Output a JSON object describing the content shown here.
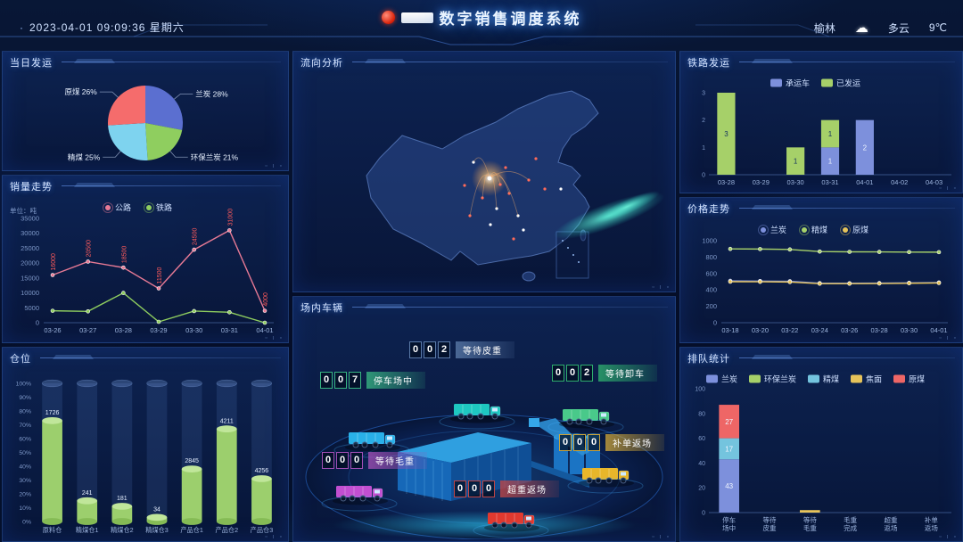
{
  "header": {
    "datetime": "2023-04-01  09:09:36  星期六",
    "title": "数字销售调度系统",
    "logo_icon": "emblem-icon",
    "weather": {
      "city": "榆林",
      "icon": "cloud-icon",
      "condition": "多云",
      "temperature": "9℃"
    }
  },
  "panels": {
    "daily_shipment": "当日发运",
    "sales_trend": "销量走势",
    "warehouse": "仓位",
    "flow_analysis": "流向分析",
    "yard_vehicles": "场内车辆",
    "rail_shipment": "铁路发运",
    "price_trend": "价格走势",
    "queue_stats": "排队统计"
  },
  "chart_data": {
    "daily_shipment": {
      "type": "pie",
      "title": "当日发运",
      "slices": [
        {
          "name": "兰炭",
          "value": 28,
          "color": "#5b6fd0"
        },
        {
          "name": "环保兰炭",
          "value": 21,
          "color": "#8fce5f"
        },
        {
          "name": "精煤",
          "value": 25,
          "color": "#7ed3ef"
        },
        {
          "name": "原煤",
          "value": 26,
          "color": "#f56c6c"
        }
      ]
    },
    "sales_trend": {
      "type": "line",
      "title": "销量走势",
      "y_unit": "单位：吨",
      "x": [
        "03-26",
        "03-27",
        "03-28",
        "03-29",
        "03-30",
        "03-31",
        "04-01"
      ],
      "ylim": [
        0,
        35000
      ],
      "yticks": [
        0,
        5000,
        10000,
        15000,
        20000,
        25000,
        30000,
        35000
      ],
      "series": [
        {
          "name": "公路",
          "color": "#e87a95",
          "label_color": "#ff5b5b",
          "show_labels": true,
          "values": [
            16000,
            20500,
            18500,
            11500,
            24500,
            31000,
            4000
          ]
        },
        {
          "name": "铁路",
          "color": "#8fce5f",
          "show_labels": false,
          "values": [
            4000,
            3800,
            10000,
            300,
            3900,
            3500,
            0
          ]
        }
      ]
    },
    "warehouse": {
      "type": "bar",
      "title": "仓位",
      "categories": [
        "原料仓",
        "精煤仓1",
        "精煤仓2",
        "精煤仓3",
        "产品仓1",
        "产品仓2",
        "产品仓3"
      ],
      "percent": [
        73,
        15,
        11,
        3,
        38,
        67,
        31
      ],
      "labels": [
        "1726",
        "241",
        "181",
        "34",
        "2845",
        "4211",
        "4256"
      ],
      "ylim": [
        0,
        100
      ],
      "bar_color": "#9ccf6d"
    },
    "rail_shipment": {
      "type": "bar-stacked",
      "title": "铁路发运",
      "categories": [
        "03-28",
        "03-29",
        "03-30",
        "03-31",
        "04-01",
        "04-02",
        "04-03"
      ],
      "ylim": [
        0,
        3
      ],
      "yticks": [
        0,
        1,
        2,
        3
      ],
      "series": [
        {
          "name": "承运车",
          "color": "#7d90dc",
          "dark_label": false,
          "values": [
            0,
            0,
            0,
            1,
            2,
            0,
            0
          ]
        },
        {
          "name": "已发运",
          "color": "#a6d069",
          "dark_label": true,
          "values": [
            3,
            0,
            1,
            1,
            0,
            0,
            0
          ]
        }
      ]
    },
    "price_trend": {
      "type": "line",
      "title": "价格走势",
      "x": [
        "03-18",
        "03-20",
        "03-22",
        "03-24",
        "03-26",
        "03-28",
        "03-30",
        "04-01"
      ],
      "ylim": [
        0,
        1000
      ],
      "yticks": [
        0,
        200,
        400,
        600,
        800,
        1000
      ],
      "series": [
        {
          "name": "兰炭",
          "color": "#7d90dc",
          "show_labels": false,
          "values": [
            510,
            508,
            505,
            482,
            481,
            483,
            486,
            490
          ]
        },
        {
          "name": "精煤",
          "color": "#a6d069",
          "show_labels": false,
          "values": [
            900,
            898,
            893,
            868,
            864,
            863,
            861,
            860
          ]
        },
        {
          "name": "原煤",
          "color": "#e6c35a",
          "show_labels": false,
          "values": [
            500,
            499,
            496,
            476,
            476,
            478,
            481,
            484
          ]
        }
      ]
    },
    "queue_stats": {
      "type": "bar-stacked",
      "title": "排队统计",
      "categories": [
        "停车/场中",
        "等待/皮重",
        "等待/毛重",
        "毛重/完成",
        "超重/返场",
        "补单/返场"
      ],
      "ylim": [
        0,
        100
      ],
      "yticks": [
        0,
        20,
        40,
        60,
        80,
        100
      ],
      "series": [
        {
          "name": "兰炭",
          "color": "#7d90dc",
          "dark_label": false,
          "values": [
            43,
            0,
            0,
            0,
            0,
            0
          ]
        },
        {
          "name": "环保兰炭",
          "color": "#a6d069",
          "dark_label": true,
          "values": [
            0,
            0,
            0,
            0,
            0,
            0
          ]
        },
        {
          "name": "精煤",
          "color": "#74c4de",
          "dark_label": false,
          "values": [
            17,
            0,
            0,
            0,
            0,
            0
          ]
        },
        {
          "name": "焦面",
          "color": "#e6c35a",
          "dark_label": true,
          "values": [
            0,
            0,
            2,
            0,
            0,
            0
          ]
        },
        {
          "name": "原煤",
          "color": "#ee6666",
          "dark_label": false,
          "values": [
            27,
            0,
            0,
            0,
            0,
            0
          ]
        }
      ]
    }
  },
  "yard": {
    "badges": [
      {
        "id": "parking",
        "label": "停车场中",
        "value": "007",
        "color": "#38b583"
      },
      {
        "id": "tare",
        "label": "等待皮重",
        "value": "002",
        "color": "#5a7aa8"
      },
      {
        "id": "unload",
        "label": "等待卸车",
        "value": "002",
        "color": "#2fae6e"
      },
      {
        "id": "gross",
        "label": "等待毛重",
        "value": "000",
        "color": "#a14fb5"
      },
      {
        "id": "overweight",
        "label": "超重返场",
        "value": "000",
        "color": "#c04545"
      },
      {
        "id": "makeup",
        "label": "补单返场",
        "value": "000",
        "color": "#c9a23a"
      }
    ]
  }
}
